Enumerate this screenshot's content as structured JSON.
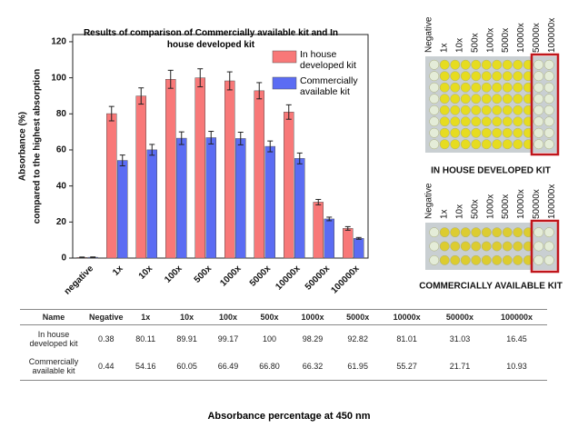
{
  "chart_data": {
    "type": "bar",
    "title": "Results of comparison of Commercially available kit and In house developed kit",
    "ylabel": [
      "Absorbance (%)",
      "compared to the highest absorption"
    ],
    "categories": [
      "negative",
      "1x",
      "10x",
      "100x",
      "500x",
      "1000x",
      "5000x",
      "10000x",
      "50000x",
      "100000x"
    ],
    "series": [
      {
        "name": "In house developed kit",
        "color": "#f87878",
        "values": [
          0.38,
          80.11,
          89.91,
          99.17,
          100,
          98.29,
          92.82,
          81.01,
          31.03,
          16.45
        ],
        "errors": [
          0.2,
          4,
          4.5,
          5,
          5,
          5,
          4.5,
          4,
          1.5,
          1
        ]
      },
      {
        "name": "Commercially available kit",
        "color": "#5b6cf3",
        "values": [
          0.44,
          54.16,
          60.05,
          66.49,
          66.8,
          66.32,
          61.95,
          55.27,
          21.71,
          10.93
        ],
        "errors": [
          0.2,
          3,
          3,
          3.5,
          3.5,
          3.5,
          3,
          3,
          1,
          0.5
        ]
      }
    ],
    "ylim": [
      0,
      124
    ],
    "yticks": [
      0,
      20,
      40,
      60,
      80,
      100,
      120
    ]
  },
  "images": [
    {
      "label": "IN HOUSE DEVELOPED KIT",
      "columns": [
        "Negative",
        "1x",
        "10x",
        "500x",
        "1000x",
        "5000x",
        "10000x",
        "50000x",
        "100000x"
      ]
    },
    {
      "label": "COMMERCIALLY AVAILABLE KIT",
      "columns": [
        "Negative",
        "1x",
        "10x",
        "500x",
        "1000x",
        "5000x",
        "10000x",
        "50000x",
        "100000x"
      ]
    }
  ],
  "table": {
    "header": [
      "Name",
      "Negative",
      "1x",
      "10x",
      "100x",
      "500x",
      "1000x",
      "5000x",
      "10000x",
      "50000x",
      "100000x"
    ],
    "rows": [
      [
        "In house developed kit",
        "0.38",
        "80.11",
        "89.91",
        "99.17",
        "100",
        "98.29",
        "92.82",
        "81.01",
        "31.03",
        "16.45"
      ],
      [
        "Commercially available kit",
        "0.44",
        "54.16",
        "60.05",
        "66.49",
        "66.80",
        "66.32",
        "61.95",
        "55.27",
        "21.71",
        "10.93"
      ]
    ]
  },
  "caption": "Absorbance percentage at 450 nm"
}
